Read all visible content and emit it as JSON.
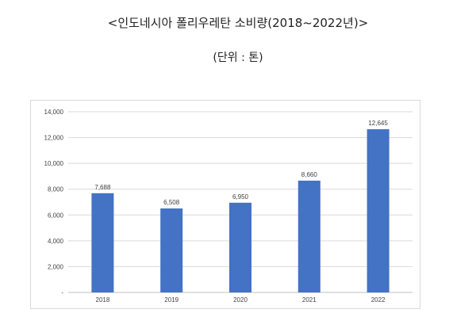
{
  "page": {
    "title": "<인도네시아 폴리우레탄 소비량(2018~2022년)>",
    "subtitle": "(단위 : 톤)"
  },
  "chart_data": {
    "type": "bar",
    "categories": [
      "2018",
      "2019",
      "2020",
      "2021",
      "2022"
    ],
    "values": [
      7688,
      6508,
      6950,
      8660,
      12645
    ],
    "data_labels": [
      "7,688",
      "6,508",
      "6,950",
      "8,660",
      "12,645"
    ],
    "ylim": [
      0,
      14000
    ],
    "yticks": [
      0,
      2000,
      4000,
      6000,
      8000,
      10000,
      12000,
      14000
    ],
    "ytick_labels": [
      "-",
      "2,000",
      "4,000",
      "6,000",
      "8,000",
      "10,000",
      "12,000",
      "14,000"
    ],
    "bar_color": "#4472c4",
    "grid": true,
    "legend": "none"
  }
}
